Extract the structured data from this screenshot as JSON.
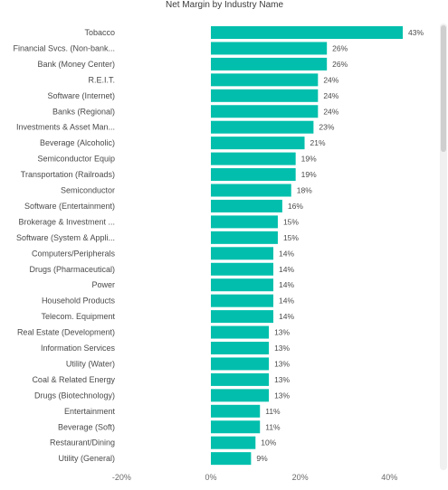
{
  "colors": {
    "bar": "#01BFAC",
    "scrollbar_track": "#f0f0f0",
    "scrollbar_thumb": "#cfcfcf",
    "text": "#4a4a4a"
  },
  "chart_data": {
    "type": "bar",
    "orientation": "horizontal",
    "title": "Net Margin by Industry Name",
    "xlabel": "",
    "ylabel": "",
    "xlim": [
      -20,
      50
    ],
    "x_ticks": [
      -20,
      0,
      20,
      40
    ],
    "x_tick_labels": [
      "-20%",
      "0%",
      "20%",
      "40%"
    ],
    "grid": false,
    "categories": [
      "Tobacco",
      "Financial Svcs. (Non-bank...",
      "Bank (Money Center)",
      "R.E.I.T.",
      "Software (Internet)",
      "Banks (Regional)",
      "Investments & Asset Man...",
      "Beverage (Alcoholic)",
      "Semiconductor Equip",
      "Transportation (Railroads)",
      "Semiconductor",
      "Software (Entertainment)",
      "Brokerage & Investment ...",
      "Software (System & Appli...",
      "Computers/Peripherals",
      "Drugs (Pharmaceutical)",
      "Power",
      "Household Products",
      "Telecom. Equipment",
      "Real Estate (Development)",
      "Information Services",
      "Utility (Water)",
      "Coal & Related Energy",
      "Drugs (Biotechnology)",
      "Entertainment",
      "Beverage (Soft)",
      "Restaurant/Dining",
      "Utility (General)"
    ],
    "values": [
      43,
      26,
      26,
      24,
      24,
      24,
      23,
      21,
      19,
      19,
      18,
      16,
      15,
      15,
      14,
      14,
      14,
      14,
      14,
      13,
      13,
      13,
      13,
      13,
      11,
      11,
      10,
      9
    ],
    "data_labels": [
      "43%",
      "26%",
      "26%",
      "24%",
      "24%",
      "24%",
      "23%",
      "21%",
      "19%",
      "19%",
      "18%",
      "16%",
      "15%",
      "15%",
      "14%",
      "14%",
      "14%",
      "14%",
      "14%",
      "13%",
      "13%",
      "13%",
      "13%",
      "13%",
      "11%",
      "11%",
      "10%",
      "9%"
    ]
  }
}
